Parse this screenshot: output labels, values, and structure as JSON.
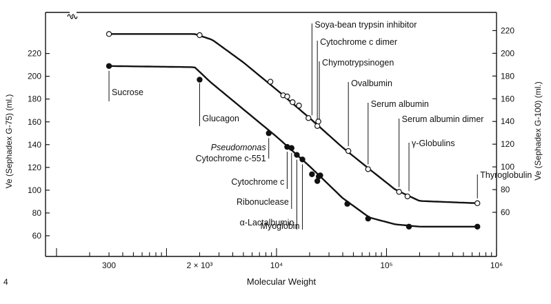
{
  "chart_data": {
    "type": "line",
    "xscale": "log",
    "xlabel": "Molecular Weight",
    "ylabel_left": "Ve (Sephadex G-75) (ml.)",
    "ylabel_right": "Ve (Sephadex G-100) (ml.)",
    "corner_label": "4",
    "x_ticks": [
      {
        "value": 300,
        "label": "300"
      },
      {
        "value": 2000,
        "label": "2 × 10³"
      },
      {
        "value": 10000,
        "label": "10⁴"
      },
      {
        "value": 100000,
        "label": "10⁵"
      },
      {
        "value": 1000000,
        "label": "10⁶"
      }
    ],
    "y_left_ticks": [
      60,
      80,
      100,
      120,
      140,
      160,
      180,
      200,
      220
    ],
    "y_right_ticks": [
      60,
      80,
      100,
      120,
      140,
      160,
      180,
      200,
      220
    ],
    "series": [
      {
        "marker": "filled",
        "axis": "left",
        "points": [
          {
            "x": 300,
            "y": 209
          },
          {
            "x": 2000,
            "y": 197
          },
          {
            "x": 8500,
            "y": 150
          },
          {
            "x": 12500,
            "y": 138
          },
          {
            "x": 13700,
            "y": 137
          },
          {
            "x": 15300,
            "y": 131
          },
          {
            "x": 17200,
            "y": 127
          },
          {
            "x": 21000,
            "y": 114
          },
          {
            "x": 23500,
            "y": 108
          },
          {
            "x": 24200,
            "y": 112
          },
          {
            "x": 25000,
            "y": 113
          },
          {
            "x": 44000,
            "y": 88
          },
          {
            "x": 68000,
            "y": 75
          },
          {
            "x": 160000,
            "y": 68
          },
          {
            "x": 670000,
            "y": 68
          }
        ],
        "curve": [
          {
            "x": 300,
            "y": 209
          },
          {
            "x": 1800,
            "y": 208
          },
          {
            "x": 2500,
            "y": 195
          },
          {
            "x": 5000,
            "y": 171
          },
          {
            "x": 10000,
            "y": 147
          },
          {
            "x": 20000,
            "y": 121
          },
          {
            "x": 40000,
            "y": 93
          },
          {
            "x": 70000,
            "y": 76
          },
          {
            "x": 120000,
            "y": 70
          },
          {
            "x": 200000,
            "y": 68
          },
          {
            "x": 670000,
            "y": 68
          }
        ]
      },
      {
        "marker": "open",
        "axis": "right",
        "points": [
          {
            "x": 300,
            "y": 217
          },
          {
            "x": 2000,
            "y": 216
          },
          {
            "x": 8800,
            "y": 175
          },
          {
            "x": 11500,
            "y": 163
          },
          {
            "x": 12500,
            "y": 162
          },
          {
            "x": 14000,
            "y": 157
          },
          {
            "x": 16000,
            "y": 154
          },
          {
            "x": 19500,
            "y": 143
          },
          {
            "x": 23500,
            "y": 136
          },
          {
            "x": 24000,
            "y": 140
          },
          {
            "x": 45000,
            "y": 114
          },
          {
            "x": 68000,
            "y": 98
          },
          {
            "x": 130000,
            "y": 78
          },
          {
            "x": 155000,
            "y": 74
          },
          {
            "x": 670000,
            "y": 68
          }
        ],
        "curve": [
          {
            "x": 300,
            "y": 217
          },
          {
            "x": 1800,
            "y": 217
          },
          {
            "x": 2600,
            "y": 212
          },
          {
            "x": 5000,
            "y": 192
          },
          {
            "x": 10000,
            "y": 168
          },
          {
            "x": 20000,
            "y": 143
          },
          {
            "x": 40000,
            "y": 117
          },
          {
            "x": 70000,
            "y": 98
          },
          {
            "x": 120000,
            "y": 80
          },
          {
            "x": 200000,
            "y": 70
          },
          {
            "x": 670000,
            "y": 68
          }
        ]
      }
    ],
    "annotations": [
      {
        "lines": [
          "Sucrose"
        ],
        "x": 300,
        "series": 0,
        "dir": "below",
        "tip": 7
      },
      {
        "lines": [
          "Glucagon"
        ],
        "x": 2000,
        "series": 0,
        "dir": "below",
        "tip": 5
      },
      {
        "lines": [
          "Pseudomonas",
          "Cytochrome c-551"
        ],
        "x": 8500,
        "series": 0,
        "dir": "below",
        "tip": 7,
        "italic_first": true
      },
      {
        "lines": [
          "Cytochrome c"
        ],
        "x": 12500,
        "series": 0,
        "dir": "below",
        "tip": 7
      },
      {
        "lines": [
          "Ribonuclease"
        ],
        "x": 13700,
        "series": 0,
        "dir": "below",
        "tip": 7
      },
      {
        "lines": [
          "α-Lactalbumin"
        ],
        "x": 15300,
        "series": 0,
        "dir": "below",
        "tip": 7
      },
      {
        "lines": [
          "Myoglobin"
        ],
        "x": 17200,
        "series": 0,
        "dir": "below",
        "tip": 7
      },
      {
        "lines": [
          "Soya-bean trypsin inhibitor"
        ],
        "x": 21000,
        "series": 1,
        "dir": "above",
        "tip": 7
      },
      {
        "lines": [
          "Cytochrome c dimer"
        ],
        "x": 23500,
        "series": 1,
        "dir": "above",
        "tip": 7
      },
      {
        "lines": [
          "Chymotrypsinogen"
        ],
        "x": 24500,
        "series": 1,
        "dir": "above",
        "tip": 7
      },
      {
        "lines": [
          "Ovalbumin"
        ],
        "x": 45000,
        "series": 1,
        "dir": "above",
        "tip": 7
      },
      {
        "lines": [
          "Serum albumin"
        ],
        "x": 68000,
        "series": 1,
        "dir": "above",
        "tip": 7
      },
      {
        "lines": [
          "Serum albumin dimer"
        ],
        "x": 130000,
        "series": 1,
        "dir": "above",
        "tip": 7
      },
      {
        "lines": [
          "γ-Globulins"
        ],
        "x": 160000,
        "series": 1,
        "dir": "above",
        "tip": 7
      },
      {
        "lines": [
          "Thyroglobulin"
        ],
        "x": 670000,
        "series": 1,
        "dir": "above",
        "tip": 7
      }
    ]
  }
}
